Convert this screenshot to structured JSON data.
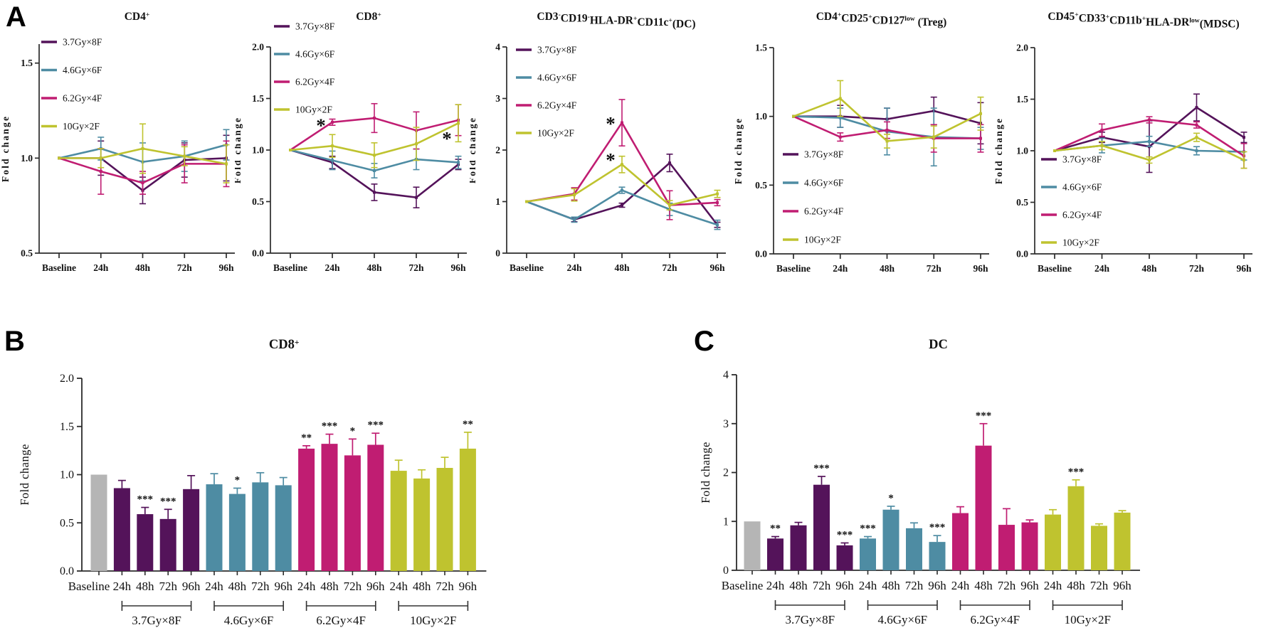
{
  "panels": {
    "a": "A",
    "b": "B",
    "c": "C"
  },
  "colors": {
    "series": [
      "#54135a",
      "#4e8ca3",
      "#c01d72",
      "#bfc32f"
    ],
    "baseline_bar": "#b5b5b5",
    "axis": "#2b2b2b",
    "text": "#111111"
  },
  "chart_data": [
    {
      "key": "cd4",
      "panel": "A",
      "type": "line",
      "title": "CD4^+^",
      "ylabel": "Fold change",
      "categories": [
        "Baseline",
        "24h",
        "48h",
        "72h",
        "96h"
      ],
      "ylim": [
        0.5,
        1.6
      ],
      "yticks": [
        0.5,
        1.0,
        1.5
      ],
      "decimals": 1,
      "legend_position": "top-left",
      "series": [
        {
          "name": "3.7Gy×8F",
          "values": [
            1.0,
            1.0,
            0.83,
            0.99,
            1.0
          ],
          "errors": [
            0,
            0.09,
            0.07,
            0.09,
            0.12
          ]
        },
        {
          "name": "4.6Gy×6F",
          "values": [
            1.0,
            1.05,
            0.98,
            1.01,
            1.07
          ],
          "errors": [
            0,
            0.06,
            0.1,
            0.08,
            0.08
          ]
        },
        {
          "name": "6.2Gy×4F",
          "values": [
            1.0,
            0.93,
            0.87,
            0.97,
            0.97
          ],
          "errors": [
            0,
            0.12,
            0.06,
            0.1,
            0.12
          ]
        },
        {
          "name": "10Gy×2F",
          "values": [
            1.0,
            1.0,
            1.05,
            1.01,
            0.97
          ],
          "errors": [
            0,
            0.05,
            0.13,
            0.05,
            0.1
          ]
        }
      ],
      "annotations": []
    },
    {
      "key": "cd8",
      "panel": "A",
      "type": "line",
      "title": "CD8^+^",
      "ylabel": "Fold change",
      "categories": [
        "Baseline",
        "24h",
        "48h",
        "72h",
        "96h"
      ],
      "ylim": [
        0.0,
        2.0
      ],
      "yticks": [
        0.0,
        0.5,
        1.0,
        1.5,
        2.0
      ],
      "decimals": 1,
      "legend_position": "top-left",
      "series": [
        {
          "name": "3.7Gy×8F",
          "values": [
            1.0,
            0.88,
            0.59,
            0.54,
            0.86
          ],
          "errors": [
            0,
            0.06,
            0.08,
            0.1,
            0.05
          ]
        },
        {
          "name": "4.6Gy×6F",
          "values": [
            1.0,
            0.9,
            0.8,
            0.91,
            0.88
          ],
          "errors": [
            0,
            0.09,
            0.07,
            0.1,
            0.06
          ]
        },
        {
          "name": "6.2Gy×4F",
          "values": [
            1.0,
            1.27,
            1.31,
            1.19,
            1.29
          ],
          "errors": [
            0,
            0.03,
            0.14,
            0.18,
            0.15
          ]
        },
        {
          "name": "10Gy×2F",
          "values": [
            1.0,
            1.04,
            0.95,
            1.06,
            1.26
          ],
          "errors": [
            0,
            0.11,
            0.12,
            0.16,
            0.18
          ]
        }
      ],
      "annotations": [
        {
          "at": "24h",
          "value": 1.26,
          "text": "*"
        },
        {
          "at": "96h",
          "value": 1.13,
          "text": "*"
        }
      ]
    },
    {
      "key": "dc",
      "panel": "A",
      "type": "line",
      "title": "CD3^-^CD19^-^HLA-DR^+^CD11c^+^(DC)",
      "ylabel": "Fold change",
      "categories": [
        "Baseline",
        "24h",
        "48h",
        "72h",
        "96h"
      ],
      "ylim": [
        0,
        4
      ],
      "yticks": [
        0,
        1,
        2,
        3,
        4
      ],
      "decimals": 0,
      "legend_position": "top-left",
      "series": [
        {
          "name": "3.7Gy×8F",
          "values": [
            1.0,
            0.65,
            0.93,
            1.75,
            0.55
          ],
          "errors": [
            0,
            0.04,
            0.04,
            0.17,
            0.05
          ]
        },
        {
          "name": "4.6Gy×6F",
          "values": [
            1.0,
            0.65,
            1.22,
            0.85,
            0.55
          ],
          "errors": [
            0,
            0.05,
            0.06,
            0.12,
            0.09
          ]
        },
        {
          "name": "6.2Gy×4F",
          "values": [
            1.0,
            1.15,
            2.53,
            0.93,
            0.98
          ],
          "errors": [
            0,
            0.12,
            0.45,
            0.28,
            0.06
          ]
        },
        {
          "name": "10Gy×2F",
          "values": [
            1.0,
            1.13,
            1.72,
            0.93,
            1.15
          ],
          "errors": [
            0,
            0.12,
            0.16,
            0.09,
            0.07
          ]
        }
      ],
      "annotations": [
        {
          "at": "48h",
          "value": 2.55,
          "text": "*"
        },
        {
          "at": "48h",
          "value": 1.85,
          "text": "*"
        }
      ]
    },
    {
      "key": "treg",
      "panel": "A",
      "type": "line",
      "title": "CD4^+^CD25^+^CD127^low^ (Treg)",
      "ylabel": "Fold change",
      "categories": [
        "Baseline",
        "24h",
        "48h",
        "72h",
        "96h"
      ],
      "ylim": [
        0.0,
        1.5
      ],
      "yticks": [
        0.0,
        0.5,
        1.0,
        1.5
      ],
      "decimals": 1,
      "legend_position": "bottom-left",
      "series": [
        {
          "name": "3.7Gy×8F",
          "values": [
            1.0,
            1.0,
            0.98,
            1.04,
            0.95
          ],
          "errors": [
            0,
            0.08,
            0.08,
            0.1,
            0.15
          ]
        },
        {
          "name": "4.6Gy×6F",
          "values": [
            1.0,
            0.99,
            0.89,
            0.85,
            0.84
          ],
          "errors": [
            0,
            0.07,
            0.17,
            0.21,
            0.08
          ]
        },
        {
          "name": "6.2Gy×4F",
          "values": [
            1.0,
            0.85,
            0.9,
            0.84,
            0.84
          ],
          "errors": [
            0,
            0.03,
            0.06,
            0.1,
            0.1
          ]
        },
        {
          "name": "10Gy×2F",
          "values": [
            1.0,
            1.13,
            0.82,
            0.85,
            1.02
          ],
          "errors": [
            0,
            0.13,
            0.05,
            0.08,
            0.12
          ]
        }
      ],
      "annotations": []
    },
    {
      "key": "mdsc",
      "panel": "A",
      "type": "line",
      "title": "CD45^+^CD33^+^CD11b^+^HLA-DR^low^(MDSC)",
      "ylabel": "Fold change",
      "categories": [
        "Baseline",
        "24h",
        "48h",
        "72h",
        "96h"
      ],
      "ylim": [
        0.0,
        2.0
      ],
      "yticks": [
        0.0,
        0.5,
        1.0,
        1.5,
        2.0
      ],
      "decimals": 1,
      "legend_position": "bottom-left",
      "series": [
        {
          "name": "3.7Gy×8F",
          "values": [
            1.0,
            1.13,
            1.04,
            1.42,
            1.13
          ],
          "errors": [
            0,
            0.05,
            0.25,
            0.13,
            0.05
          ]
        },
        {
          "name": "4.6Gy×6F",
          "values": [
            1.0,
            1.05,
            1.09,
            1.0,
            0.99
          ],
          "errors": [
            0,
            0.07,
            0.05,
            0.04,
            0.08
          ]
        },
        {
          "name": "6.2Gy×4F",
          "values": [
            1.0,
            1.2,
            1.3,
            1.25,
            0.95
          ],
          "errors": [
            0,
            0.06,
            0.03,
            0.03,
            0.12
          ]
        },
        {
          "name": "10Gy×2F",
          "values": [
            1.0,
            1.05,
            0.91,
            1.13,
            0.91
          ],
          "errors": [
            0,
            0.04,
            0.03,
            0.04,
            0.08
          ]
        }
      ],
      "annotations": []
    },
    {
      "key": "cd8_bar",
      "panel": "B",
      "type": "bar",
      "title": "CD8^+^",
      "ylabel": "Fold change",
      "ylim": [
        0,
        2.0
      ],
      "yticks": [
        0.0,
        0.5,
        1.0,
        1.5,
        2.0
      ],
      "decimals": 1,
      "baseline_bar": {
        "label": "Baseline",
        "value": 1.0
      },
      "group_categories": [
        "24h",
        "48h",
        "72h",
        "96h"
      ],
      "groups": [
        {
          "name": "3.7Gy×8F",
          "values": [
            0.86,
            0.59,
            0.54,
            0.85
          ],
          "errors": [
            0.08,
            0.07,
            0.1,
            0.14
          ],
          "sig": [
            "",
            "***",
            "***",
            ""
          ]
        },
        {
          "name": "4.6Gy×6F",
          "values": [
            0.9,
            0.8,
            0.92,
            0.89
          ],
          "errors": [
            0.11,
            0.06,
            0.1,
            0.08
          ],
          "sig": [
            "",
            "*",
            "",
            ""
          ]
        },
        {
          "name": "6.2Gy×4F",
          "values": [
            1.27,
            1.32,
            1.2,
            1.31
          ],
          "errors": [
            0.03,
            0.1,
            0.17,
            0.12
          ],
          "sig": [
            "**",
            "***",
            "*",
            "***"
          ]
        },
        {
          "name": "10Gy×2F",
          "values": [
            1.04,
            0.96,
            1.07,
            1.27
          ],
          "errors": [
            0.11,
            0.09,
            0.11,
            0.17
          ],
          "sig": [
            "",
            "",
            "",
            "**"
          ]
        }
      ]
    },
    {
      "key": "dc_bar",
      "panel": "C",
      "type": "bar",
      "title": "DC",
      "ylabel": "Fold change",
      "ylim": [
        0,
        4
      ],
      "yticks": [
        0,
        1,
        2,
        3,
        4
      ],
      "decimals": 0,
      "baseline_bar": {
        "label": "Baseline",
        "value": 1.0
      },
      "group_categories": [
        "24h",
        "48h",
        "72h",
        "96h"
      ],
      "groups": [
        {
          "name": "3.7Gy×8F",
          "values": [
            0.65,
            0.92,
            1.75,
            0.51
          ],
          "errors": [
            0.04,
            0.06,
            0.17,
            0.05
          ],
          "sig": [
            "**",
            "",
            "***",
            "***"
          ]
        },
        {
          "name": "4.6Gy×6F",
          "values": [
            0.65,
            1.24,
            0.86,
            0.58
          ],
          "errors": [
            0.04,
            0.07,
            0.11,
            0.13
          ],
          "sig": [
            "***",
            "*",
            "",
            "***"
          ]
        },
        {
          "name": "6.2Gy×4F",
          "values": [
            1.17,
            2.55,
            0.93,
            0.98
          ],
          "errors": [
            0.13,
            0.45,
            0.33,
            0.05
          ],
          "sig": [
            "",
            "***",
            "",
            ""
          ]
        },
        {
          "name": "10Gy×2F",
          "values": [
            1.14,
            1.72,
            0.91,
            1.18
          ],
          "errors": [
            0.1,
            0.13,
            0.04,
            0.04
          ],
          "sig": [
            "",
            "***",
            "",
            ""
          ]
        }
      ]
    }
  ]
}
